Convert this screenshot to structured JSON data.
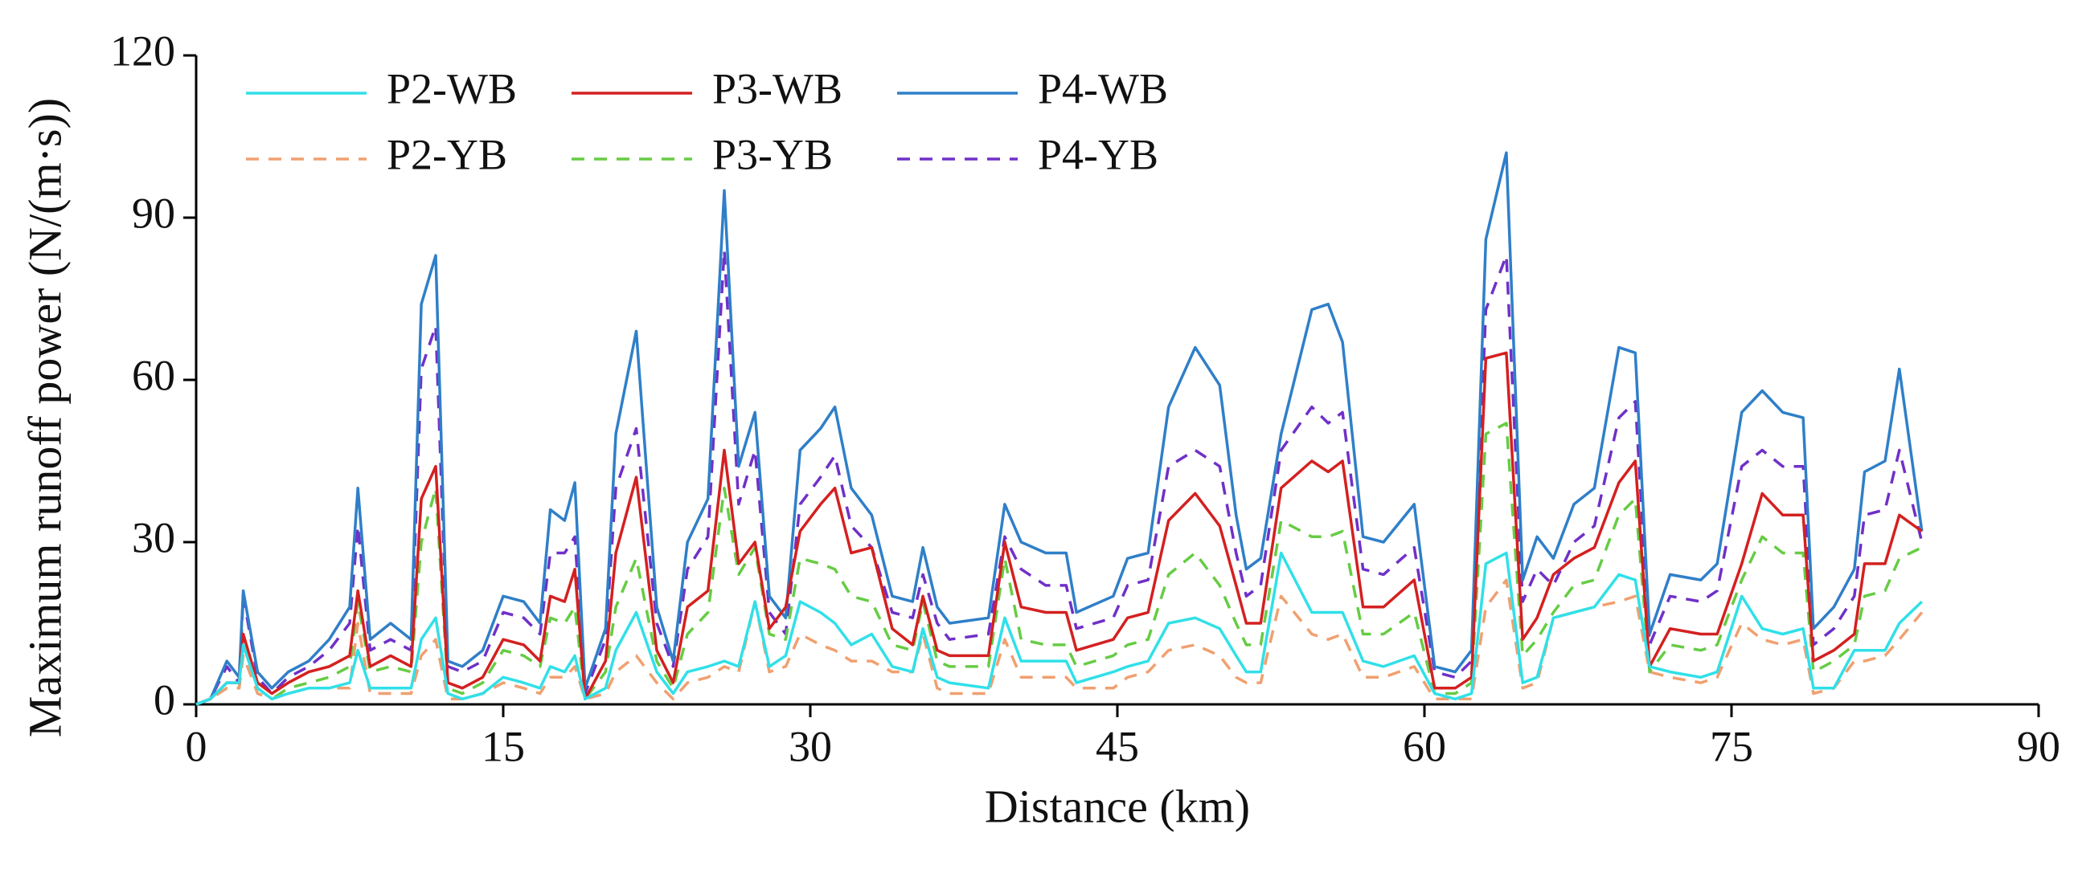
{
  "chart_data": {
    "type": "line",
    "x_label": "Distance (km)",
    "y_label": "Maximum runoff power (N/(m·s))",
    "xlim": [
      0,
      90
    ],
    "xticks": [
      0,
      15,
      30,
      45,
      60,
      75,
      90
    ],
    "ylim": [
      0,
      120
    ],
    "yticks": [
      0,
      30,
      60,
      90,
      120
    ],
    "legend": "upper left",
    "x": [
      0,
      0.7,
      1.5,
      2.1,
      2.3,
      3,
      3.7,
      4.5,
      5.5,
      6.5,
      7.5,
      7.9,
      8.5,
      9.5,
      10.5,
      11,
      11.7,
      12.3,
      13,
      14,
      15,
      16,
      16.8,
      17.3,
      18,
      18.5,
      19,
      20,
      20.5,
      21.5,
      22.5,
      23.3,
      24,
      25,
      25.8,
      26.5,
      27.3,
      28,
      28.8,
      29.5,
      30.5,
      31.2,
      32,
      33,
      34,
      35,
      35.5,
      36.2,
      36.8,
      38.7,
      39.5,
      40.3,
      41.5,
      42.5,
      43,
      44.8,
      45.5,
      46.5,
      47.5,
      48.8,
      50,
      50.8,
      51.3,
      52,
      53,
      54.5,
      55.3,
      56,
      57,
      58,
      59.5,
      60.5,
      61.5,
      62.3,
      63,
      64,
      64.8,
      65.5,
      66.3,
      67.3,
      68.3,
      69.5,
      70.3,
      71,
      72,
      73.5,
      74.3,
      75.5,
      76.5,
      77.5,
      78.5,
      79,
      80,
      81,
      81.5,
      82.5,
      83.2,
      84.3
    ],
    "series": [
      {
        "name": "P2-WB",
        "color": "#30e0e8",
        "dashed": false,
        "values": [
          0,
          1,
          4,
          4,
          11,
          3,
          1,
          2,
          3,
          3,
          4,
          10,
          3,
          3,
          3,
          12,
          16,
          2,
          1,
          2,
          5,
          4,
          3,
          7,
          6,
          9,
          1,
          3,
          10,
          17,
          6,
          2,
          6,
          7,
          8,
          7,
          19,
          7,
          9,
          19,
          17,
          15,
          11,
          13,
          7,
          6,
          14,
          5,
          4,
          3,
          16,
          8,
          8,
          8,
          4,
          6,
          7,
          8,
          15,
          16,
          14,
          9,
          6,
          6,
          28,
          17,
          17,
          17,
          8,
          7,
          9,
          2,
          1,
          2,
          26,
          28,
          4,
          5,
          16,
          17,
          18,
          24,
          23,
          7,
          6,
          5,
          6,
          20,
          14,
          13,
          14,
          3,
          3,
          10,
          10,
          10,
          15,
          19
        ]
      },
      {
        "name": "P3-WB",
        "color": "#d42020",
        "dashed": false,
        "values": [
          0,
          1,
          4,
          4,
          13,
          4,
          2,
          4,
          6,
          7,
          9,
          21,
          7,
          9,
          7,
          38,
          44,
          4,
          3,
          5,
          12,
          11,
          8,
          20,
          19,
          25,
          1,
          8,
          28,
          42,
          10,
          4,
          18,
          21,
          47,
          26,
          30,
          14,
          18,
          32,
          37,
          40,
          28,
          29,
          14,
          11,
          20,
          10,
          9,
          9,
          30,
          18,
          17,
          17,
          10,
          12,
          16,
          17,
          34,
          39,
          33,
          22,
          15,
          15,
          40,
          45,
          43,
          45,
          18,
          18,
          23,
          3,
          3,
          5,
          64,
          65,
          12,
          16,
          24,
          27,
          29,
          41,
          45,
          7,
          14,
          13,
          13,
          26,
          39,
          35,
          35,
          8,
          10,
          13,
          26,
          26,
          35,
          32
        ]
      },
      {
        "name": "P4-WB",
        "color": "#2f7fc8",
        "dashed": false,
        "values": [
          0,
          1,
          8,
          5,
          21,
          6,
          3,
          6,
          8,
          12,
          18,
          40,
          12,
          15,
          12,
          74,
          83,
          8,
          7,
          10,
          20,
          19,
          15,
          36,
          34,
          41,
          3,
          14,
          50,
          69,
          18,
          8,
          30,
          38,
          95,
          44,
          54,
          20,
          16,
          47,
          51,
          55,
          40,
          35,
          20,
          19,
          29,
          18,
          15,
          16,
          37,
          30,
          28,
          28,
          17,
          20,
          27,
          28,
          55,
          66,
          59,
          35,
          25,
          27,
          50,
          73,
          74,
          67,
          31,
          30,
          37,
          7,
          6,
          10,
          86,
          102,
          23,
          31,
          27,
          37,
          40,
          66,
          65,
          13,
          24,
          23,
          26,
          54,
          58,
          54,
          53,
          14,
          18,
          25,
          43,
          45,
          62,
          32
        ]
      },
      {
        "name": "P2-YB",
        "color": "#f0a070",
        "dashed": true,
        "values": [
          0,
          1,
          3,
          3,
          9,
          2,
          1,
          2,
          3,
          3,
          3,
          15,
          2,
          2,
          2,
          9,
          12,
          1,
          1,
          2,
          4,
          3,
          2,
          5,
          5,
          7,
          1,
          2,
          6,
          9,
          4,
          1,
          4,
          5,
          7,
          6,
          19,
          6,
          7,
          13,
          11,
          10,
          8,
          8,
          6,
          6,
          13,
          3,
          2,
          2,
          12,
          5,
          5,
          5,
          3,
          3,
          5,
          6,
          10,
          11,
          9,
          5,
          4,
          4,
          20,
          13,
          12,
          13,
          5,
          5,
          7,
          1,
          1,
          1,
          18,
          23,
          3,
          4,
          16,
          17,
          18,
          19,
          20,
          6,
          5,
          4,
          5,
          15,
          12,
          11,
          12,
          2,
          3,
          8,
          8,
          9,
          12,
          17
        ]
      },
      {
        "name": "P3-YB",
        "color": "#66cc44",
        "dashed": true,
        "values": [
          0,
          1,
          3,
          3,
          11,
          3,
          1,
          3,
          4,
          5,
          7,
          19,
          6,
          7,
          6,
          30,
          40,
          3,
          2,
          4,
          10,
          9,
          7,
          16,
          15,
          18,
          1,
          6,
          18,
          27,
          8,
          3,
          13,
          17,
          40,
          24,
          29,
          13,
          12,
          27,
          26,
          25,
          20,
          19,
          11,
          10,
          19,
          8,
          7,
          7,
          27,
          12,
          11,
          11,
          7,
          9,
          11,
          12,
          24,
          28,
          22,
          15,
          11,
          11,
          34,
          31,
          31,
          32,
          13,
          13,
          17,
          2,
          2,
          4,
          50,
          52,
          9,
          12,
          17,
          22,
          23,
          35,
          38,
          6,
          11,
          10,
          11,
          23,
          31,
          28,
          28,
          6,
          8,
          11,
          20,
          21,
          27,
          29
        ]
      },
      {
        "name": "P4-YB",
        "color": "#7030c8",
        "dashed": true,
        "values": [
          0,
          1,
          7,
          4,
          20,
          5,
          2,
          5,
          7,
          10,
          15,
          33,
          10,
          12,
          10,
          62,
          70,
          7,
          6,
          8,
          17,
          16,
          13,
          28,
          28,
          31,
          2,
          12,
          40,
          51,
          15,
          7,
          25,
          31,
          84,
          37,
          47,
          17,
          13,
          37,
          42,
          46,
          33,
          29,
          17,
          16,
          24,
          15,
          12,
          13,
          31,
          25,
          22,
          22,
          14,
          16,
          22,
          23,
          44,
          47,
          44,
          28,
          20,
          22,
          47,
          55,
          52,
          54,
          25,
          24,
          29,
          6,
          5,
          8,
          73,
          83,
          19,
          25,
          22,
          30,
          33,
          53,
          56,
          11,
          20,
          19,
          21,
          44,
          47,
          44,
          44,
          11,
          14,
          20,
          35,
          36,
          47,
          30
        ]
      }
    ]
  }
}
